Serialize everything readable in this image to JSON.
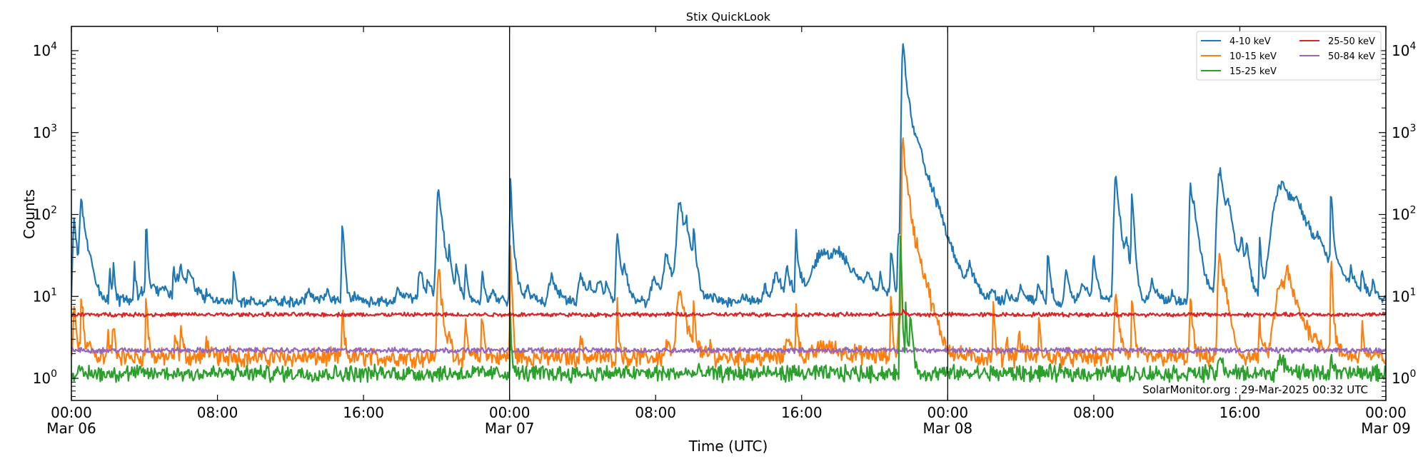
{
  "chart_data": {
    "type": "line",
    "title": "Stix QuickLook",
    "xlabel": "Time (UTC)",
    "ylabel": "Counts",
    "yscale": "log",
    "ylim": [
      0.54,
      20000
    ],
    "xlim_hours": [
      0,
      72
    ],
    "grid": false,
    "legend_position": "upper right",
    "x_ticks": [
      {
        "hours": 0,
        "line1": "00:00",
        "line2": "Mar 06"
      },
      {
        "hours": 8,
        "line1": "08:00",
        "line2": ""
      },
      {
        "hours": 16,
        "line1": "16:00",
        "line2": ""
      },
      {
        "hours": 24,
        "line1": "00:00",
        "line2": "Mar 07"
      },
      {
        "hours": 32,
        "line1": "08:00",
        "line2": ""
      },
      {
        "hours": 40,
        "line1": "16:00",
        "line2": ""
      },
      {
        "hours": 48,
        "line1": "00:00",
        "line2": "Mar 08"
      },
      {
        "hours": 56,
        "line1": "08:00",
        "line2": ""
      },
      {
        "hours": 64,
        "line1": "16:00",
        "line2": ""
      },
      {
        "hours": 72,
        "line1": "00:00",
        "line2": "Mar 09"
      }
    ],
    "y_ticks": [
      {
        "exp": 0,
        "label": "10",
        "sup": "0"
      },
      {
        "exp": 1,
        "label": "10",
        "sup": "1"
      },
      {
        "exp": 2,
        "label": "10",
        "sup": "2"
      },
      {
        "exp": 3,
        "label": "10",
        "sup": "3"
      },
      {
        "exp": 4,
        "label": "10",
        "sup": "4"
      }
    ],
    "day_dividers_hours": [
      24,
      48
    ],
    "annotation": "SolarMonitor.org : 29-Mar-2025 00:32 UTC",
    "series": [
      {
        "name": "4-10 keV",
        "color": "#1f77b4",
        "baseline": 8.5,
        "noise": 0.05,
        "peaks": [
          [
            0.15,
            90,
            0.15
          ],
          [
            0.55,
            150,
            0.2
          ],
          [
            1.0,
            20,
            0.3
          ],
          [
            2.1,
            25,
            0.08
          ],
          [
            2.3,
            25,
            0.08
          ],
          [
            2.9,
            10,
            0.3
          ],
          [
            3.45,
            25,
            0.08
          ],
          [
            3.85,
            12,
            0.3
          ],
          [
            4.1,
            75,
            0.08
          ],
          [
            4.5,
            14,
            0.3
          ],
          [
            5.0,
            12,
            0.4
          ],
          [
            5.6,
            22,
            0.1
          ],
          [
            6.0,
            22,
            0.4
          ],
          [
            6.5,
            16,
            0.3
          ],
          [
            7.4,
            12,
            0.1
          ],
          [
            8.9,
            20,
            0.1
          ],
          [
            10.9,
            10,
            0.2
          ],
          [
            13.0,
            11,
            0.4
          ],
          [
            14.0,
            12,
            0.2
          ],
          [
            14.85,
            75,
            0.1
          ],
          [
            15.5,
            10,
            0.3
          ],
          [
            17.9,
            12,
            0.3
          ],
          [
            18.5,
            10,
            0.3
          ],
          [
            19.1,
            22,
            0.2
          ],
          [
            19.6,
            14,
            0.3
          ],
          [
            20.1,
            190,
            0.22
          ],
          [
            20.7,
            30,
            0.1
          ],
          [
            21.1,
            22,
            0.15
          ],
          [
            21.6,
            22,
            0.1
          ],
          [
            22.5,
            22,
            0.1
          ],
          [
            23.0,
            12,
            0.2
          ],
          [
            24.05,
            260,
            0.08
          ],
          [
            24.3,
            20,
            0.3
          ],
          [
            25.0,
            11,
            0.3
          ],
          [
            26.3,
            18,
            0.3
          ],
          [
            27.9,
            18,
            0.3
          ],
          [
            28.4,
            13,
            0.15
          ],
          [
            28.9,
            15,
            0.3
          ],
          [
            29.3,
            16,
            0.1
          ],
          [
            29.9,
            65,
            0.15
          ],
          [
            30.3,
            20,
            0.2
          ],
          [
            31.9,
            16,
            0.4
          ],
          [
            32.6,
            30,
            0.4
          ],
          [
            33.3,
            150,
            0.3
          ],
          [
            33.7,
            45,
            0.2
          ],
          [
            34.1,
            55,
            0.1
          ],
          [
            35.0,
            10,
            0.3
          ],
          [
            36.8,
            10,
            0.3
          ],
          [
            38.0,
            13,
            0.3
          ],
          [
            38.6,
            18,
            0.4
          ],
          [
            39.2,
            22,
            0.2
          ],
          [
            39.7,
            60,
            0.1
          ],
          [
            40.0,
            14,
            0.3
          ],
          [
            41.2,
            35,
            1.3
          ],
          [
            42.0,
            22,
            0.8
          ],
          [
            43.6,
            14,
            0.15
          ],
          [
            44.3,
            14,
            0.15
          ],
          [
            44.9,
            40,
            0.1
          ],
          [
            45.3,
            50,
            0.1
          ],
          [
            45.55,
            12000,
            0.15
          ],
          [
            45.9,
            1300,
            0.5
          ],
          [
            46.5,
            200,
            0.6
          ],
          [
            47.2,
            40,
            0.6
          ],
          [
            47.6,
            18,
            0.3
          ],
          [
            49.2,
            20,
            0.3
          ],
          [
            50.4,
            12,
            0.2
          ],
          [
            51.2,
            11,
            0.2
          ],
          [
            52.0,
            13,
            0.3
          ],
          [
            53.0,
            14,
            0.2
          ],
          [
            53.5,
            35,
            0.1
          ],
          [
            54.5,
            20,
            0.2
          ],
          [
            55.4,
            15,
            0.4
          ],
          [
            56.0,
            30,
            0.15
          ],
          [
            57.2,
            280,
            0.2
          ],
          [
            57.8,
            40,
            0.2
          ],
          [
            58.1,
            170,
            0.1
          ],
          [
            59.2,
            15,
            0.3
          ],
          [
            60.3,
            11,
            0.15
          ],
          [
            61.3,
            220,
            0.15
          ],
          [
            61.5,
            80,
            0.3
          ],
          [
            62.9,
            350,
            0.3
          ],
          [
            63.4,
            80,
            0.3
          ],
          [
            64.1,
            40,
            0.2
          ],
          [
            64.4,
            35,
            0.15
          ],
          [
            65.1,
            45,
            0.1
          ],
          [
            66.3,
            240,
            1.0
          ],
          [
            67.1,
            60,
            0.4
          ],
          [
            68.3,
            25,
            0.3
          ],
          [
            69.0,
            200,
            0.08
          ],
          [
            69.3,
            15,
            0.3
          ],
          [
            70.1,
            20,
            0.1
          ],
          [
            70.7,
            20,
            0.1
          ],
          [
            71.3,
            14,
            0.15
          ]
        ]
      },
      {
        "name": "10-15 keV",
        "color": "#ff7f0e",
        "baseline": 1.8,
        "noise": 0.09,
        "peaks": [
          [
            0.15,
            8,
            0.1
          ],
          [
            0.55,
            10,
            0.1
          ],
          [
            1.0,
            2.5,
            0.2
          ],
          [
            2.0,
            3.5,
            0.1
          ],
          [
            2.3,
            4.5,
            0.1
          ],
          [
            4.1,
            10,
            0.08
          ],
          [
            5.7,
            3.8,
            0.08
          ],
          [
            6.0,
            4,
            0.1
          ],
          [
            7.4,
            3.8,
            0.08
          ],
          [
            8.7,
            2.6,
            0.08
          ],
          [
            14.85,
            7,
            0.08
          ],
          [
            20.1,
            24,
            0.15
          ],
          [
            20.7,
            4,
            0.1
          ],
          [
            21.6,
            4,
            0.1
          ],
          [
            22.5,
            6,
            0.1
          ],
          [
            24.05,
            40,
            0.06
          ],
          [
            27.9,
            3.6,
            0.08
          ],
          [
            29.9,
            8,
            0.08
          ],
          [
            32.6,
            2.8,
            0.2
          ],
          [
            33.3,
            12,
            0.3
          ],
          [
            34.1,
            7,
            0.1
          ],
          [
            35.0,
            2.8,
            0.08
          ],
          [
            39.2,
            3.6,
            0.2
          ],
          [
            39.7,
            8,
            0.08
          ],
          [
            41.3,
            2.5,
            1.2
          ],
          [
            44.9,
            12,
            0.06
          ],
          [
            45.3,
            8,
            0.06
          ],
          [
            45.55,
            1000,
            0.12
          ],
          [
            45.9,
            100,
            0.4
          ],
          [
            46.4,
            8,
            0.4
          ],
          [
            46.8,
            4,
            0.3
          ],
          [
            50.5,
            7,
            0.08
          ],
          [
            51.2,
            3.6,
            0.08
          ],
          [
            51.9,
            3.2,
            0.2
          ],
          [
            53.0,
            5,
            0.08
          ],
          [
            57.2,
            12,
            0.15
          ],
          [
            58.1,
            9,
            0.1
          ],
          [
            61.3,
            10,
            0.1
          ],
          [
            62.9,
            35,
            0.2
          ],
          [
            63.3,
            6,
            0.2
          ],
          [
            65.1,
            5,
            0.1
          ],
          [
            66.3,
            14,
            0.8
          ],
          [
            66.6,
            12,
            0.3
          ],
          [
            69.0,
            30,
            0.08
          ],
          [
            70.7,
            5,
            0.08
          ]
        ]
      },
      {
        "name": "15-25 keV",
        "color": "#2ca02c",
        "baseline": 1.15,
        "noise": 0.08,
        "peaks": [
          [
            24.05,
            5,
            0.06
          ],
          [
            45.4,
            50,
            0.06
          ],
          [
            45.7,
            10,
            0.06
          ],
          [
            45.95,
            7,
            0.1
          ],
          [
            62.9,
            1.8,
            0.2
          ],
          [
            66.3,
            1.6,
            0.5
          ],
          [
            69.0,
            2.5,
            0.06
          ]
        ]
      },
      {
        "name": "25-50 keV",
        "color": "#d62728",
        "baseline": 6.0,
        "noise": 0.02,
        "peaks": [
          [
            45.55,
            7,
            0.08
          ]
        ]
      },
      {
        "name": "50-84 keV",
        "color": "#9467bd",
        "baseline": 2.2,
        "noise": 0.025,
        "peaks": []
      }
    ]
  },
  "legend": {
    "items": [
      {
        "label": "4-10 keV",
        "color": "#1f77b4"
      },
      {
        "label": "10-15 keV",
        "color": "#ff7f0e"
      },
      {
        "label": "15-25 keV",
        "color": "#2ca02c"
      },
      {
        "label": "25-50 keV",
        "color": "#d62728"
      },
      {
        "label": "50-84 keV",
        "color": "#9467bd"
      }
    ]
  }
}
